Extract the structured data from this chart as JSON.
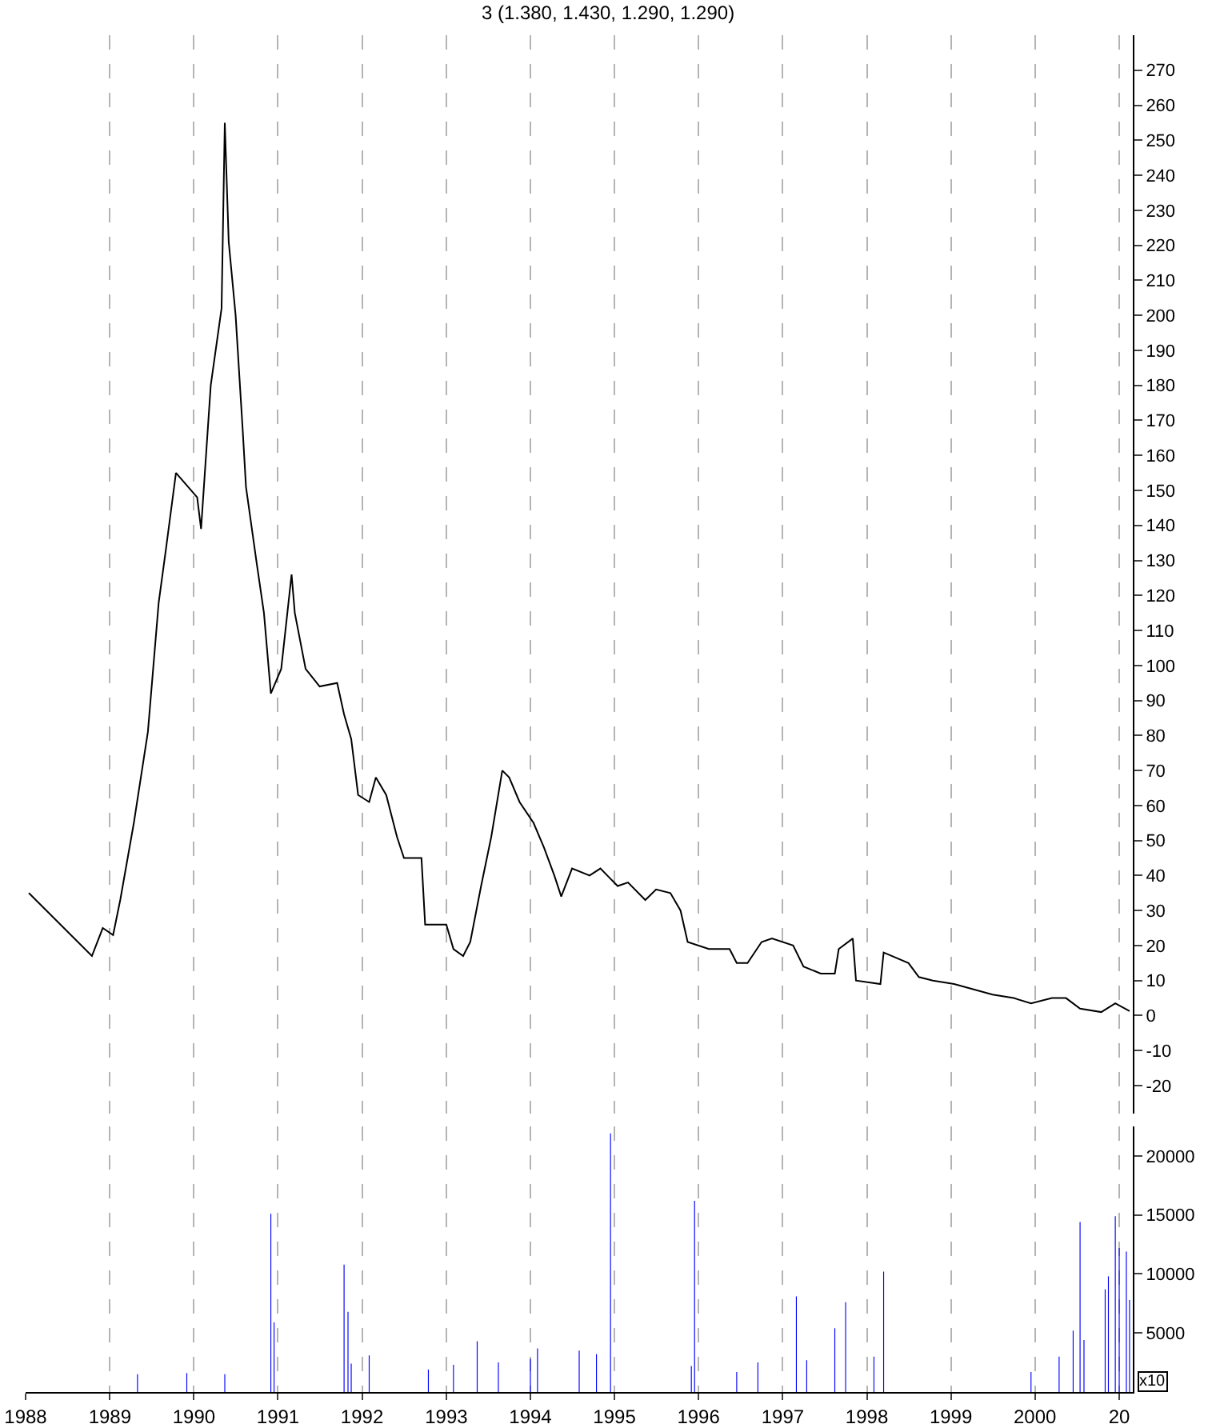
{
  "chart_data": [
    {
      "type": "line",
      "title": "3 (1.380, 1.430, 1.290, 1.290)",
      "tick_labels": "y",
      "grid": "x",
      "xlim": [
        "1988-01-01",
        "2001-03-01"
      ],
      "xticks": [
        {
          "value": "1988",
          "label": null
        },
        {
          "value": "1989",
          "label": null
        },
        {
          "value": "1990",
          "label": null
        },
        {
          "value": "1991",
          "label": null
        },
        {
          "value": "1992",
          "label": null
        },
        {
          "value": "1993",
          "label": null
        },
        {
          "value": "1994",
          "label": null
        },
        {
          "value": "1995",
          "label": null
        },
        {
          "value": "1996",
          "label": null
        },
        {
          "value": "1997",
          "label": null
        },
        {
          "value": "1998",
          "label": null
        },
        {
          "value": "1999",
          "label": null
        },
        {
          "value": "2000",
          "label": null
        },
        {
          "value": "2001",
          "label": null
        }
      ],
      "ylim": [
        -28,
        280
      ],
      "yticks": [
        -20,
        -10,
        0,
        10,
        20,
        30,
        40,
        50,
        60,
        70,
        80,
        90,
        100,
        110,
        120,
        130,
        140,
        150,
        160,
        170,
        180,
        190,
        200,
        210,
        220,
        230,
        240,
        250,
        260,
        270
      ],
      "series": [
        {
          "color": "#000000",
          "x": [
            "1988-01-15",
            "1988-10-15",
            "1988-12-01",
            "1989-01-15",
            "1989-02-15",
            "1989-04-15",
            "1989-06-15",
            "1989-08-01",
            "1989-09-01",
            "1989-10-15",
            "1990-01-15",
            "1990-02-01",
            "1990-03-15",
            "1990-05-01",
            "1990-05-15",
            "1990-06-01",
            "1990-07-01",
            "1990-08-01",
            "1990-08-15",
            "1990-10-01",
            "1990-11-01",
            "1990-12-01",
            "1991-01-15",
            "1991-03-01",
            "1991-03-15",
            "1991-05-01",
            "1991-07-01",
            "1991-09-15",
            "1991-10-15",
            "1991-11-15",
            "1991-12-15",
            "1992-02-01",
            "1992-03-01",
            "1992-04-15",
            "1992-06-01",
            "1992-07-01",
            "1992-09-15",
            "1992-10-01",
            "1993-01-01",
            "1993-02-01",
            "1993-03-15",
            "1993-04-15",
            "1993-06-01",
            "1993-07-15",
            "1993-09-01",
            "1993-10-01",
            "1993-11-15",
            "1994-01-15",
            "1994-03-01",
            "1994-04-15",
            "1994-05-15",
            "1994-07-01",
            "1994-09-15",
            "1994-11-01",
            "1995-01-15",
            "1995-03-01",
            "1995-05-15",
            "1995-07-01",
            "1995-09-01",
            "1995-10-15",
            "1995-11-15",
            "1996-02-15",
            "1996-05-15",
            "1996-06-15",
            "1996-08-01",
            "1996-10-01",
            "1996-11-15",
            "1997-02-15",
            "1997-04-01",
            "1997-06-15",
            "1997-08-15",
            "1997-09-01",
            "1997-11-01",
            "1997-11-15",
            "1998-03-01",
            "1998-03-15",
            "1998-07-01",
            "1998-08-15",
            "1998-10-15",
            "1999-01-15",
            "1999-07-01",
            "1999-10-01",
            "1999-12-15",
            "2000-03-15",
            "2000-05-15",
            "2000-07-15",
            "2000-10-15",
            "2000-12-15",
            "2001-02-15"
          ],
          "values": [
            35,
            17,
            25,
            23,
            33,
            55,
            81,
            118,
            133,
            155,
            148,
            139,
            180,
            202,
            255,
            221,
            200,
            167,
            151,
            129,
            115,
            92,
            99,
            126,
            115,
            99,
            94,
            95,
            86,
            79,
            63,
            61,
            68,
            63,
            51,
            45,
            45,
            26,
            26,
            19,
            17,
            21,
            37,
            51,
            70,
            68,
            61,
            55,
            48,
            40,
            34,
            42,
            40,
            42,
            37,
            38,
            33,
            36,
            35,
            30,
            21,
            19,
            19,
            15,
            15,
            21,
            22,
            20,
            14,
            12,
            12,
            19,
            22,
            10,
            9,
            18,
            15,
            11,
            10,
            9,
            6,
            5,
            3.5,
            5,
            5,
            2,
            1,
            3.5,
            1.3
          ]
        }
      ]
    },
    {
      "type": "bar",
      "annotations": [
        "x10"
      ],
      "grid": "x",
      "xlim": [
        "1988-01-01",
        "2001-03-01"
      ],
      "xticks": [
        {
          "value": "1988",
          "label": "1988"
        },
        {
          "value": "1989",
          "label": "1989"
        },
        {
          "value": "1990",
          "label": "1990"
        },
        {
          "value": "1991",
          "label": "1991"
        },
        {
          "value": "1992",
          "label": "1992"
        },
        {
          "value": "1993",
          "label": "1993"
        },
        {
          "value": "1994",
          "label": "1994"
        },
        {
          "value": "1995",
          "label": "1995"
        },
        {
          "value": "1996",
          "label": "1996"
        },
        {
          "value": "1997",
          "label": "1997"
        },
        {
          "value": "1998",
          "label": "1998"
        },
        {
          "value": "1999",
          "label": "1999"
        },
        {
          "value": "2000",
          "label": "2000"
        },
        {
          "value": "2001",
          "label": "20"
        }
      ],
      "ylim": [
        0,
        22500
      ],
      "yticks": [
        5000,
        10000,
        15000,
        20000
      ],
      "series": [
        {
          "color": "#0000ff",
          "x": [
            "1989-05-01",
            "1989-12-01",
            "1990-05-15",
            "1990-12-01",
            "1990-12-15",
            "1991-10-15",
            "1991-11-01",
            "1991-11-15",
            "1992-02-01",
            "1992-10-15",
            "1993-02-01",
            "1993-05-15",
            "1993-08-15",
            "1994-01-01",
            "1994-02-01",
            "1994-08-01",
            "1994-10-15",
            "1994-12-15",
            "1995-12-01",
            "1995-12-15",
            "1996-06-15",
            "1996-09-15",
            "1997-03-01",
            "1997-04-15",
            "1997-08-15",
            "1997-10-01",
            "1998-02-01",
            "1998-03-15",
            "1999-12-15",
            "2000-04-15",
            "2000-06-15",
            "2000-07-15",
            "2000-08-01",
            "2000-11-01",
            "2000-11-15",
            "2000-12-15",
            "2001-01-01",
            "2001-02-01",
            "2001-02-15"
          ],
          "values": [
            1500,
            1600,
            1500,
            15100,
            5900,
            10800,
            6800,
            2400,
            3100,
            1900,
            2300,
            4300,
            2500,
            2800,
            3700,
            3500,
            3200,
            21900,
            2200,
            16200,
            1700,
            2500,
            8100,
            2700,
            5400,
            7600,
            3000,
            10200,
            1700,
            3000,
            5200,
            14400,
            4400,
            8700,
            9800,
            14900,
            12200,
            11900,
            7800
          ]
        }
      ]
    }
  ]
}
